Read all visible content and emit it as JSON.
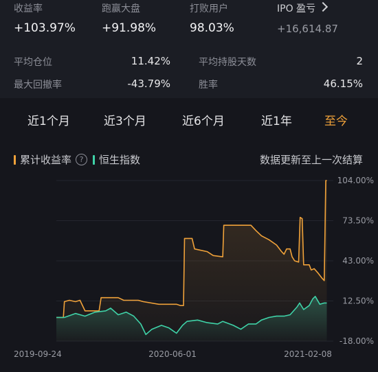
{
  "stats": {
    "top": [
      {
        "label": "收益率",
        "value": "+103.97%"
      },
      {
        "label": "跑赢大盘",
        "value": "+91.98%"
      },
      {
        "label": "打败用户",
        "value": "98.03%"
      },
      {
        "label": "IPO 盈亏",
        "value": "+16,614.87"
      }
    ],
    "rows": [
      {
        "left_label": "平均仓位",
        "left_value": "11.42%",
        "right_label": "平均持股天数",
        "right_value": "2"
      },
      {
        "left_label": "最大回撤率",
        "left_value": "-43.79%",
        "right_label": "胜率",
        "right_value": "46.15%"
      }
    ]
  },
  "tabs": [
    "近1个月",
    "近3个月",
    "近6个月",
    "近1年",
    "至今"
  ],
  "active_tab": "至今",
  "legend": {
    "series1": "累计收益率",
    "series2": "恒生指数",
    "help": "?",
    "note": "数据更新至上一次结算"
  },
  "colors": {
    "series1": "#f0a23a",
    "series2": "#3fd3a8",
    "accent": "#f0a23a"
  },
  "chart_data": {
    "type": "line",
    "x_ticks": [
      "2019-09-24",
      "2020-06-01",
      "2021-02-08"
    ],
    "y_ticks": [
      "104.00%",
      "73.50%",
      "43.00%",
      "12.50%",
      "-18.00%"
    ],
    "ylim": [
      -18,
      104
    ],
    "xlim": [
      "2019-09-24",
      "2021-03-28"
    ],
    "series": [
      {
        "name": "累计收益率",
        "points": [
          [
            "2019-09-24",
            0
          ],
          [
            "2019-10-08",
            0
          ],
          [
            "2019-10-10",
            12
          ],
          [
            "2019-10-20",
            13
          ],
          [
            "2019-11-01",
            12
          ],
          [
            "2019-11-10",
            13
          ],
          [
            "2019-11-20",
            5
          ],
          [
            "2019-12-01",
            5
          ],
          [
            "2019-12-18",
            5
          ],
          [
            "2019-12-22",
            15
          ],
          [
            "2020-01-10",
            15
          ],
          [
            "2020-01-25",
            15
          ],
          [
            "2020-02-05",
            13
          ],
          [
            "2020-03-05",
            13
          ],
          [
            "2020-03-15",
            12
          ],
          [
            "2020-04-15",
            10
          ],
          [
            "2020-05-20",
            10
          ],
          [
            "2020-05-28",
            9
          ],
          [
            "2020-06-03",
            9
          ],
          [
            "2020-06-05",
            60
          ],
          [
            "2020-06-20",
            60
          ],
          [
            "2020-06-25",
            52
          ],
          [
            "2020-07-20",
            50
          ],
          [
            "2020-08-01",
            47
          ],
          [
            "2020-08-20",
            46
          ],
          [
            "2020-08-22",
            70
          ],
          [
            "2020-10-05",
            70
          ],
          [
            "2020-10-15",
            70
          ],
          [
            "2020-10-25",
            66
          ],
          [
            "2020-11-05",
            62
          ],
          [
            "2020-11-20",
            59
          ],
          [
            "2020-12-05",
            55
          ],
          [
            "2020-12-15",
            50
          ],
          [
            "2020-12-20",
            48
          ],
          [
            "2020-12-25",
            52
          ],
          [
            "2021-01-01",
            52
          ],
          [
            "2021-01-05",
            46
          ],
          [
            "2021-01-10",
            43
          ],
          [
            "2021-01-18",
            42
          ],
          [
            "2021-01-21",
            76
          ],
          [
            "2021-01-25",
            75
          ],
          [
            "2021-01-28",
            40
          ],
          [
            "2021-02-08",
            40
          ],
          [
            "2021-02-12",
            36
          ],
          [
            "2021-02-18",
            37
          ],
          [
            "2021-02-25",
            34
          ],
          [
            "2021-03-05",
            30
          ],
          [
            "2021-03-10",
            28
          ],
          [
            "2021-03-13",
            103.97
          ],
          [
            "2021-03-15",
            103.97
          ]
        ]
      },
      {
        "name": "恒生指数",
        "points": [
          [
            "2019-09-24",
            0
          ],
          [
            "2019-10-10",
            0
          ],
          [
            "2019-11-01",
            3
          ],
          [
            "2019-11-20",
            1
          ],
          [
            "2019-12-10",
            4
          ],
          [
            "2019-12-31",
            5
          ],
          [
            "2020-01-10",
            7
          ],
          [
            "2020-01-25",
            2
          ],
          [
            "2020-02-10",
            4
          ],
          [
            "2020-02-25",
            1
          ],
          [
            "2020-03-10",
            -5
          ],
          [
            "2020-03-20",
            -13
          ],
          [
            "2020-04-01",
            -9
          ],
          [
            "2020-04-20",
            -6
          ],
          [
            "2020-05-05",
            -8
          ],
          [
            "2020-05-20",
            -12
          ],
          [
            "2020-06-01",
            -6
          ],
          [
            "2020-06-10",
            -3
          ],
          [
            "2020-07-01",
            -2
          ],
          [
            "2020-07-20",
            -4
          ],
          [
            "2020-08-10",
            -5
          ],
          [
            "2020-08-20",
            -3
          ],
          [
            "2020-09-10",
            -6
          ],
          [
            "2020-09-25",
            -9
          ],
          [
            "2020-10-10",
            -5
          ],
          [
            "2020-10-25",
            -5
          ],
          [
            "2020-11-05",
            -2
          ],
          [
            "2020-11-20",
            0
          ],
          [
            "2020-12-05",
            1
          ],
          [
            "2020-12-20",
            1
          ],
          [
            "2021-01-01",
            2
          ],
          [
            "2021-01-15",
            8
          ],
          [
            "2021-01-20",
            11
          ],
          [
            "2021-01-28",
            6
          ],
          [
            "2021-02-08",
            9
          ],
          [
            "2021-02-15",
            14
          ],
          [
            "2021-02-20",
            16
          ],
          [
            "2021-03-01",
            10
          ],
          [
            "2021-03-10",
            11
          ],
          [
            "2021-03-15",
            11
          ]
        ]
      }
    ]
  }
}
